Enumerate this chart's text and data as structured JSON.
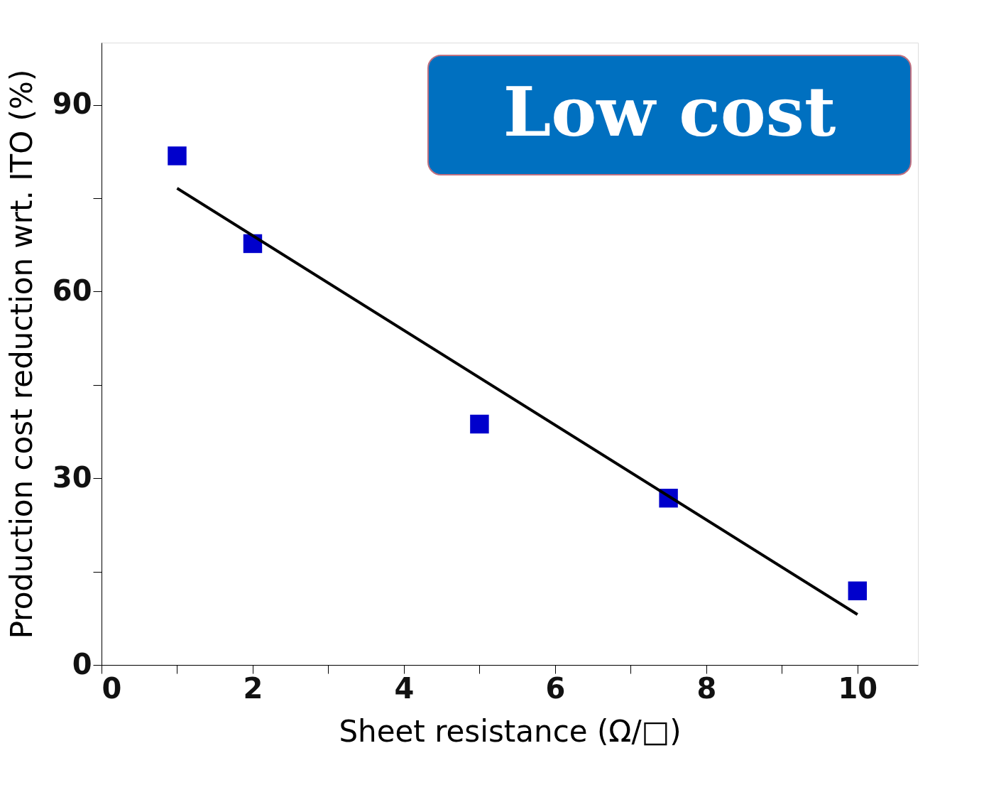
{
  "chart_data": {
    "type": "scatter",
    "xlabel": "Sheet resistance (Ω/□)",
    "ylabel": "Production cost reduction wrt. ITO (%)",
    "series": [
      {
        "marker": "square",
        "color": "#0000cc",
        "x": [
          1,
          2,
          5,
          7.5,
          10
        ],
        "values": [
          81.8,
          67.7,
          38.7,
          26.8,
          11.9
        ]
      },
      {
        "type": "line",
        "color": "#000000",
        "x": [
          1,
          10
        ],
        "values": [
          76.6,
          8.1
        ]
      }
    ],
    "line_style": "solid",
    "xlim": [
      0,
      10.8
    ],
    "ylim": [
      0,
      100
    ],
    "xticks": [
      0,
      {
        "value": 1,
        "label": null
      },
      2,
      {
        "value": 3,
        "label": null
      },
      4,
      {
        "value": 5,
        "label": null
      },
      6,
      {
        "value": 7,
        "label": null
      },
      8,
      {
        "value": 9,
        "label": null
      },
      10
    ],
    "yticks": [
      0,
      {
        "value": 15,
        "label": null
      },
      30,
      {
        "value": 45,
        "label": null
      },
      60,
      {
        "value": 75,
        "label": null
      },
      90
    ],
    "annotations": [
      "Low cost"
    ],
    "grid": false
  }
}
